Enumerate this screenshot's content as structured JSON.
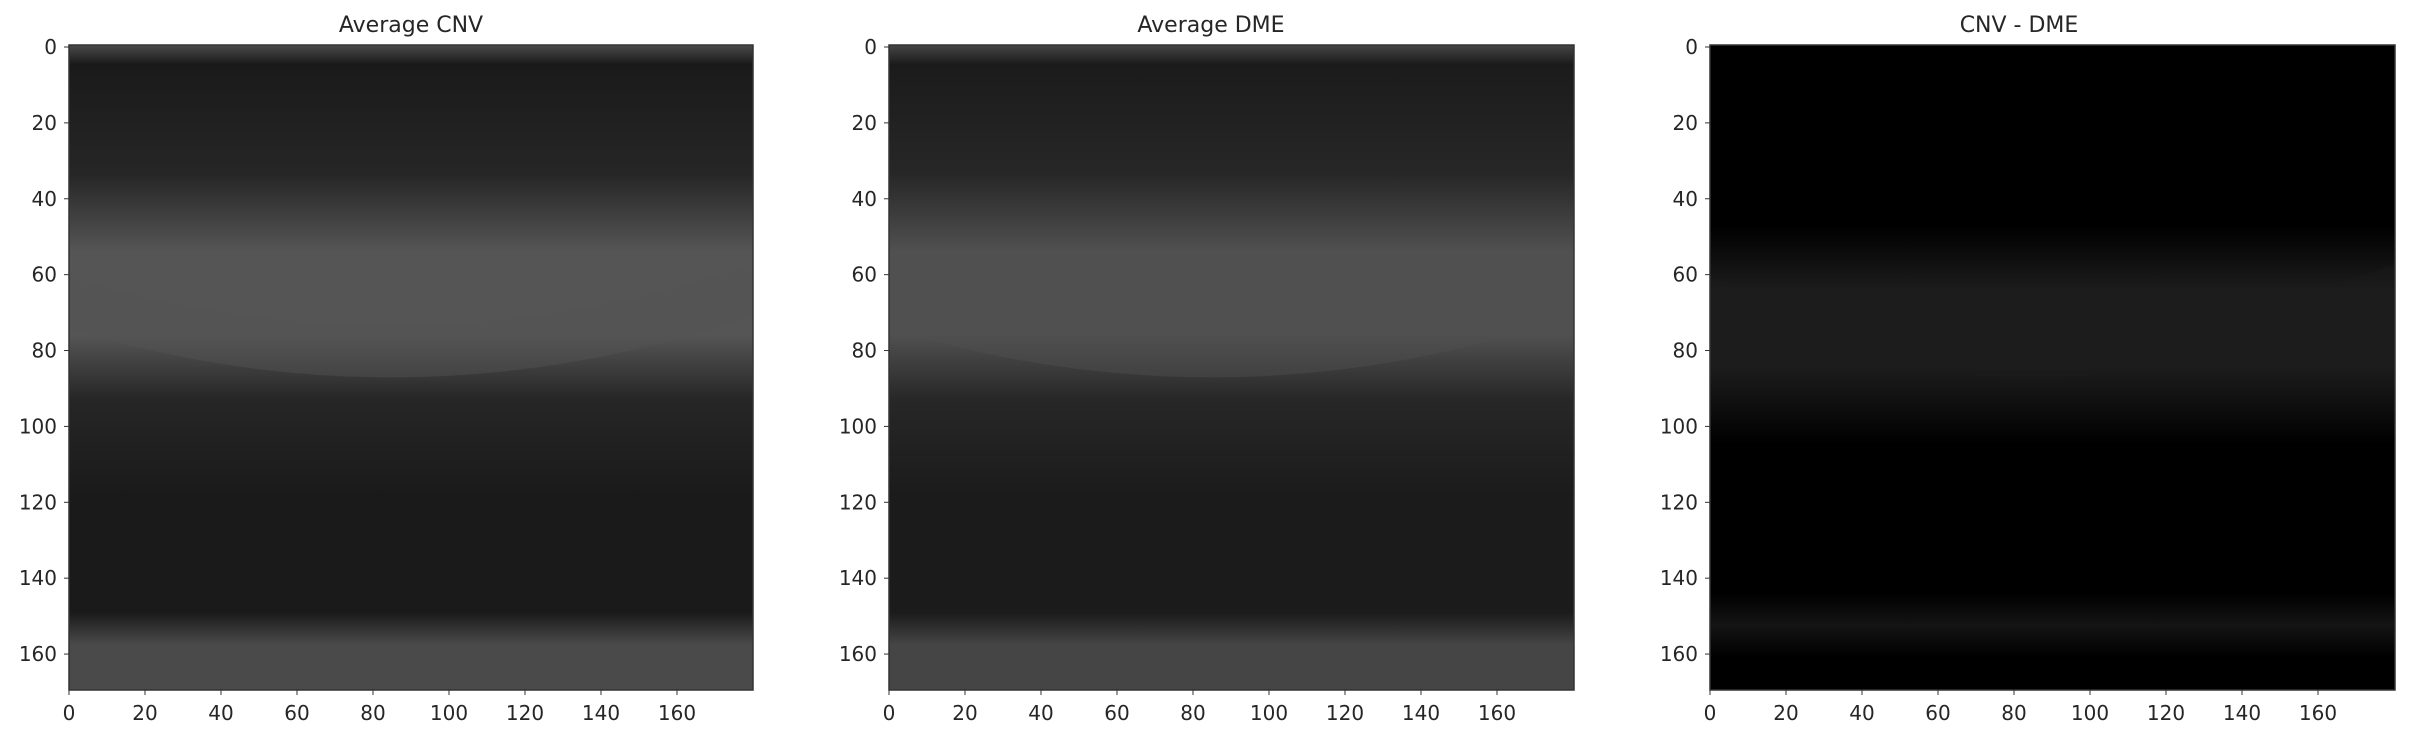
{
  "figure": {
    "panels": [
      {
        "id": "cnv",
        "title": "Average CNV",
        "variant": "cnv",
        "colors": {
          "base": "#262626",
          "band": "#555555",
          "dark": "#1a1a1a",
          "bottom": "#4a4a4a"
        }
      },
      {
        "id": "dme",
        "title": "Average DME",
        "variant": "dme",
        "colors": {
          "base": "#272727",
          "band": "#505050",
          "dark": "#1b1b1b",
          "bottom": "#454545"
        }
      },
      {
        "id": "diff",
        "title": "CNV - DME",
        "variant": "diff",
        "colors": {
          "base": "#000000",
          "band": "#1c1c1c",
          "dark": "#000000",
          "bottom": "#141414"
        }
      }
    ],
    "x_ticks": [
      "0",
      "20",
      "40",
      "60",
      "80",
      "100",
      "120",
      "140",
      "160"
    ],
    "y_ticks": [
      "0",
      "20",
      "40",
      "60",
      "80",
      "100",
      "120",
      "140",
      "160"
    ]
  }
}
